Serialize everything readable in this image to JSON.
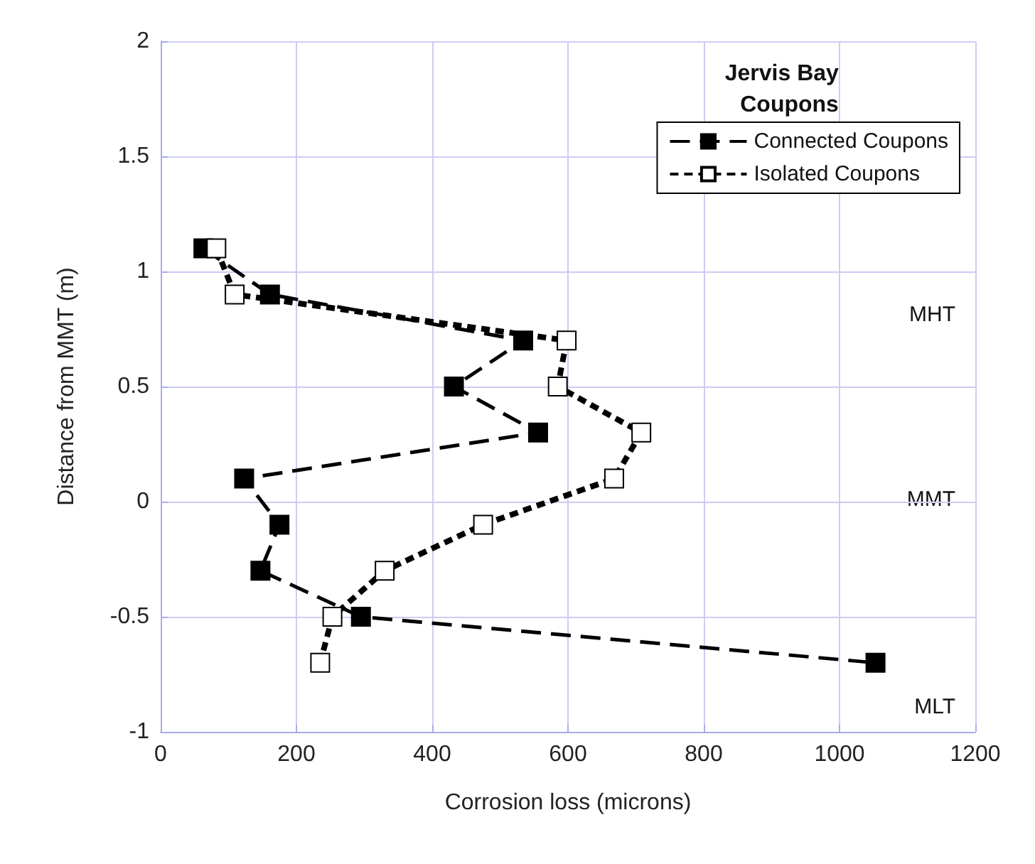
{
  "chart_data": {
    "type": "line",
    "title": "Jervis Bay\nCoupons",
    "xlabel": "Corrosion loss (microns)",
    "ylabel": "Distance from MMT (m)",
    "xlim": [
      0,
      1200
    ],
    "xticks": [
      0,
      200,
      400,
      600,
      800,
      1000,
      1200
    ],
    "ylim": [
      -1,
      2
    ],
    "yticks": [
      -1,
      -0.5,
      0,
      0.5,
      1,
      1.5,
      2
    ],
    "series": [
      {
        "name": "Connected Coupons",
        "color": "#000000",
        "line_style": "dashed",
        "x": [
          63,
          161,
          534,
          432,
          556,
          123,
          175,
          147,
          295,
          1053
        ],
        "values": [
          1.1,
          0.9,
          0.7,
          0.5,
          0.3,
          0.1,
          -0.1,
          -0.3,
          -0.5,
          -0.7
        ]
      },
      {
        "name": "Isolated Coupons",
        "color": "#000000",
        "line_style": "dotted",
        "x": [
          82,
          109,
          598,
          585,
          708,
          668,
          475,
          330,
          253,
          235
        ],
        "values": [
          1.1,
          0.9,
          0.7,
          0.5,
          0.3,
          0.1,
          -0.1,
          -0.3,
          -0.5,
          -0.7
        ]
      }
    ],
    "annotations": [
      "MHT",
      "MMT",
      "MLT"
    ],
    "marker": "square",
    "grid": true,
    "legend": "top right"
  }
}
